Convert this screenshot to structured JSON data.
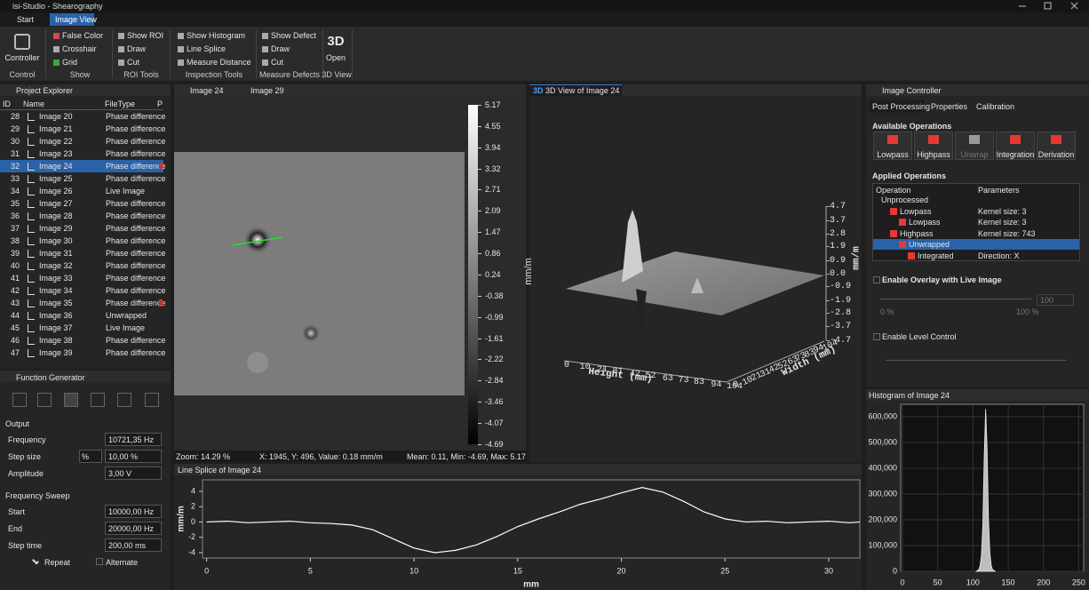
{
  "window": {
    "title": "isi-Studio - Shearography"
  },
  "tabs": [
    "Start",
    "Image View"
  ],
  "ribbon": {
    "groups": [
      {
        "label": "Control",
        "items": [
          "Controller"
        ]
      },
      {
        "label": "Show",
        "items": [
          "False Color",
          "Crosshair",
          "Grid"
        ]
      },
      {
        "label": "ROI Tools",
        "items": [
          "Show ROI",
          "Draw",
          "Cut"
        ]
      },
      {
        "label": "Inspection Tools",
        "items": [
          "Show Histogram",
          "Line Splice",
          "Measure Distance"
        ]
      },
      {
        "label": "Measure Defects",
        "items": [
          "Show Defect",
          "Draw",
          "Cut"
        ]
      },
      {
        "label": "3D View",
        "items": [
          "3D",
          "Open"
        ]
      }
    ]
  },
  "project_explorer": {
    "title": "Project Explorer",
    "columns": [
      "ID",
      "Name",
      "FileType",
      "P"
    ],
    "rows": [
      [
        "28",
        "Image 20",
        "Phase difference"
      ],
      [
        "29",
        "Image 21",
        "Phase difference"
      ],
      [
        "30",
        "Image 22",
        "Phase difference"
      ],
      [
        "31",
        "Image 23",
        "Phase difference"
      ],
      [
        "32",
        "Image 24",
        "Phase difference"
      ],
      [
        "33",
        "Image 25",
        "Phase difference"
      ],
      [
        "34",
        "Image 26",
        "Live Image"
      ],
      [
        "35",
        "Image 27",
        "Phase difference"
      ],
      [
        "36",
        "Image 28",
        "Phase difference"
      ],
      [
        "37",
        "Image 29",
        "Phase difference"
      ],
      [
        "38",
        "Image 30",
        "Phase difference"
      ],
      [
        "39",
        "Image 31",
        "Phase difference"
      ],
      [
        "40",
        "Image 32",
        "Phase difference"
      ],
      [
        "41",
        "Image 33",
        "Phase difference"
      ],
      [
        "42",
        "Image 34",
        "Phase difference"
      ],
      [
        "43",
        "Image 35",
        "Phase difference"
      ],
      [
        "44",
        "Image 36",
        "Unwrapped"
      ],
      [
        "45",
        "Image 37",
        "Live Image"
      ],
      [
        "46",
        "Image 38",
        "Phase difference"
      ],
      [
        "47",
        "Image 39",
        "Phase difference"
      ]
    ]
  },
  "function_generator": {
    "title": "Function Generator",
    "output_label": "Output",
    "fields": [
      {
        "label": "Frequency",
        "value": "10721,35 Hz"
      },
      {
        "label": "Step size",
        "unit": "%",
        "value": "10,00 %"
      },
      {
        "label": "Amplitude",
        "value": "3,00 V"
      }
    ],
    "sweep_label": "Frequency Sweep",
    "sweep_fields": [
      {
        "label": "Start",
        "value": "10000,00 Hz"
      },
      {
        "label": "End",
        "value": "20000,00 Hz"
      },
      {
        "label": "Step time",
        "value": "200,00 ms"
      }
    ],
    "repeat": "Repeat",
    "alternate": "Alternate"
  },
  "image_view": {
    "tabs": [
      "Image 24",
      "Image 29"
    ],
    "colorbar": {
      "label": "mm/m",
      "lim": [
        -4.69,
        5.17
      ],
      "ticks": [
        5.17,
        4.55,
        3.94,
        3.32,
        2.71,
        2.09,
        1.47,
        0.86,
        0.24,
        -0.38,
        -0.99,
        -1.61,
        -2.22,
        -2.84,
        -3.46,
        -4.07,
        -4.69
      ]
    },
    "status": {
      "zoom": "Zoom: 14.29 %",
      "cursor": "X: 1945, Y: 496, Value: 0.18 mm/m",
      "stats": "Mean: 0.11, Min: -4.69, Max: 5.17"
    }
  },
  "view_3d": {
    "tab_prefix": "3D",
    "title": "3D View of Image 24",
    "x_label": "Height (mm)",
    "y_label": "Width (mm)",
    "z_label": "mm/m",
    "xlim": [
      0,
      104
    ],
    "x_ticks": [
      0,
      10,
      21,
      31,
      42,
      52,
      63,
      73,
      83,
      94,
      104
    ],
    "ylim": [
      0,
      104
    ],
    "y_ticks": [
      0,
      10,
      21,
      31,
      42,
      52,
      63,
      73,
      83,
      94,
      104
    ],
    "zlim": [
      -4.7,
      4.7
    ],
    "z_ticks": [
      4.7,
      3.7,
      2.8,
      1.9,
      0.9,
      {
        "value": 0,
        "label": "0.0"
      },
      -0.9,
      -1.9,
      -2.8,
      -3.7,
      -4.7
    ]
  },
  "line_splice": {
    "title": "Line Splice of Image 24",
    "chart_data": {
      "type": "line",
      "x_label": "mm",
      "y_label": "mm/m",
      "color": "#ffffff",
      "x": [
        0,
        1,
        2,
        3,
        4,
        5,
        6,
        7,
        8,
        9,
        10,
        11,
        12,
        13,
        14,
        15,
        16,
        17,
        18,
        19,
        20,
        21,
        22,
        23,
        24,
        25,
        26,
        27,
        28,
        29,
        30,
        31,
        31.5
      ],
      "values": [
        0.0,
        0.1,
        -0.1,
        0.0,
        0.1,
        -0.1,
        -0.2,
        -0.4,
        -1.0,
        -2.2,
        -3.4,
        -4.0,
        -3.7,
        -3.0,
        -1.9,
        -0.6,
        0.4,
        1.3,
        2.3,
        3.0,
        3.8,
        4.5,
        3.9,
        2.7,
        1.3,
        0.4,
        0.0,
        0.1,
        -0.1,
        0.0,
        0.1,
        -0.1,
        0.0
      ],
      "xlim": [
        -0.2,
        31.5
      ],
      "xticks": [
        0,
        5,
        10,
        15,
        20,
        25,
        30
      ],
      "ylim": [
        -4.7,
        5.5
      ],
      "yticks": [
        4,
        2,
        0,
        -2,
        -4
      ]
    }
  },
  "image_controller": {
    "title": "Image Controller",
    "tabs": [
      "Post Processing",
      "Properties",
      "Calibration"
    ],
    "available_label": "Available Operations",
    "operations": [
      "Lowpass",
      "Highpass",
      "Unwrap",
      "Integration",
      "Derivation"
    ],
    "applied_label": "Applied Operations",
    "columns": [
      "Operation",
      "Parameters"
    ],
    "applied": [
      [
        "Unprocessed",
        ""
      ],
      [
        "Lowpass",
        "Kernel size: 3"
      ],
      [
        "Lowpass",
        "Kernel size: 3"
      ],
      [
        "Highpass",
        "Kernel size: 743"
      ],
      [
        "Unwrapped",
        ""
      ],
      [
        "Integrated",
        "Direction: X"
      ]
    ],
    "overlay_label": "Enable Overlay with Live Image",
    "overlay_min": "0 %",
    "overlay_max": "100 %",
    "overlay_value": "100",
    "level_label": "Enable Level Control"
  },
  "histogram": {
    "title": "Histogram of Image 24",
    "chart_data": {
      "type": "area",
      "color": "#bdbdbd",
      "grid": true,
      "x": [
        104,
        108,
        110,
        112,
        114,
        116,
        118,
        120,
        122,
        124,
        126,
        128,
        132
      ],
      "values": [
        0,
        5000,
        20000,
        60000,
        180000,
        450000,
        630000,
        480000,
        200000,
        70000,
        20000,
        5000,
        0
      ],
      "xlim": [
        -2.5,
        257
      ],
      "xticks": [
        0,
        50,
        100,
        150,
        200,
        250
      ],
      "ylim": [
        0,
        648000
      ],
      "yticks": [
        0,
        {
          "value": 100000,
          "label": "100,000"
        },
        {
          "value": 200000,
          "label": "200,000"
        },
        {
          "value": 300000,
          "label": "300,000"
        },
        {
          "value": 400000,
          "label": "400,000"
        },
        {
          "value": 500000,
          "label": "500,000"
        },
        {
          "value": 600000,
          "label": "600,000"
        }
      ]
    }
  }
}
